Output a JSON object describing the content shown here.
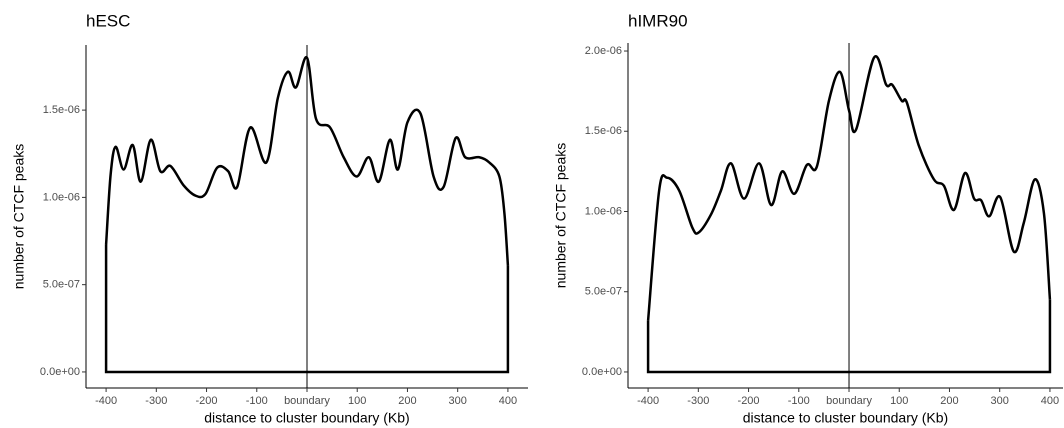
{
  "chart_data": [
    {
      "type": "density",
      "title": "hESC",
      "xlabel": "distance to cluster boundary (Kb)",
      "ylabel": "number of CTCF peaks",
      "color": "#000000",
      "x": [
        -400,
        -391,
        -381,
        -365,
        -347,
        -331,
        -311,
        -292,
        -272,
        -246,
        -222,
        -202,
        -179,
        -157,
        -139,
        -113,
        -81,
        -58,
        -38,
        -22,
        0,
        18,
        46,
        73,
        99,
        123,
        143,
        165,
        181,
        200,
        226,
        252,
        272,
        296,
        315,
        343,
        363,
        383,
        393,
        400
      ],
      "values": [
        7.3e-07,
        1.13e-06,
        1.29e-06,
        1.16e-06,
        1.3e-06,
        1.09e-06,
        1.33e-06,
        1.15e-06,
        1.18e-06,
        1.07e-06,
        1.01e-06,
        1.02e-06,
        1.17e-06,
        1.15e-06,
        1.06e-06,
        1.4e-06,
        1.2e-06,
        1.57e-06,
        1.72e-06,
        1.63e-06,
        1.8e-06,
        1.45e-06,
        1.4e-06,
        1.23e-06,
        1.12e-06,
        1.23e-06,
        1.09e-06,
        1.33e-06,
        1.16e-06,
        1.43e-06,
        1.48e-06,
        1.12e-06,
        1.06e-06,
        1.34e-06,
        1.23e-06,
        1.23e-06,
        1.2e-06,
        1.12e-06,
        9.1e-07,
        6.1e-07
      ],
      "vline": 0,
      "xlim": [
        -440,
        440
      ],
      "ylim": [
        -9.2e-08,
        1.873e-06
      ],
      "xticks": [
        -400,
        -300,
        -200,
        -100,
        {
          "value": 0,
          "label": "boundary"
        },
        100,
        200,
        300,
        400
      ],
      "yticks": [
        {
          "value": 0,
          "label": "0.0e+00"
        },
        {
          "value": 5e-07,
          "label": "5.0e-07"
        },
        {
          "value": 1e-06,
          "label": "1.0e-06"
        },
        {
          "value": 1.5e-06,
          "label": "1.5e-06"
        }
      ]
    },
    {
      "type": "density",
      "title": "hIMR90",
      "xlabel": "distance to cluster boundary (Kb)",
      "ylabel": "number of CTCF peaks",
      "color": "#000000",
      "x": [
        -400,
        -378,
        -362,
        -338,
        -312,
        -299,
        -275,
        -255,
        -235,
        -209,
        -179,
        -155,
        -133,
        -109,
        -84,
        -64,
        -40,
        -18,
        0,
        14,
        50,
        74,
        86,
        105,
        115,
        139,
        169,
        189,
        209,
        231,
        249,
        263,
        279,
        301,
        328,
        348,
        370,
        388,
        400
      ],
      "values": [
        3.2e-07,
        1.13e-06,
        1.21e-06,
        1.13e-06,
        9e-07,
        8.7e-07,
        9.8e-07,
        1.13e-06,
        1.3e-06,
        1.08e-06,
        1.3e-06,
        1.04e-06,
        1.25e-06,
        1.11e-06,
        1.29e-06,
        1.28e-06,
        1.69e-06,
        1.87e-06,
        1.63e-06,
        1.51e-06,
        1.96e-06,
        1.79e-06,
        1.79e-06,
        1.69e-06,
        1.68e-06,
        1.41e-06,
        1.2e-06,
        1.16e-06,
        1.01e-06,
        1.24e-06,
        1.08e-06,
        1.07e-06,
        9.7e-07,
        1.09e-06,
        7.5e-07,
        9.3e-07,
        1.2e-06,
        9.9e-07,
        4.5e-07
      ],
      "vline": 0,
      "xlim": [
        -440,
        426
      ],
      "ylim": [
        -1e-07,
        2.05e-06
      ],
      "xticks": [
        -400,
        -300,
        -200,
        -100,
        {
          "value": 0,
          "label": "boundary"
        },
        100,
        200,
        300,
        400
      ],
      "yticks": [
        {
          "value": 0,
          "label": "0.0e+00"
        },
        {
          "value": 5e-07,
          "label": "5.0e-07"
        },
        {
          "value": 1e-06,
          "label": "1.0e-06"
        },
        {
          "value": 1.5e-06,
          "label": "1.5e-06"
        },
        {
          "value": 2e-06,
          "label": "2.0e-06"
        }
      ]
    }
  ]
}
